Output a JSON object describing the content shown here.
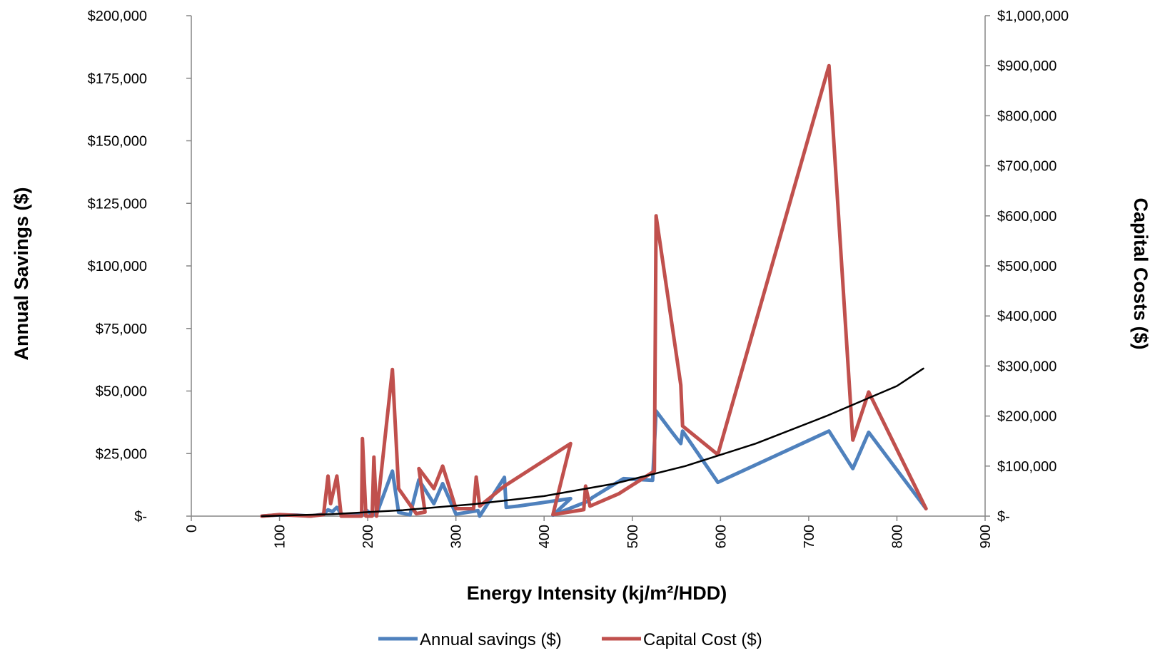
{
  "chart_data": {
    "type": "line",
    "xlabel": "Energy Intensity (kj/m²/HDD)",
    "ylabel_left": "Annual Savings ($)",
    "ylabel_right": "Capital Costs ($)",
    "xlim": [
      0,
      900
    ],
    "x_ticks": [
      {
        "value": 0,
        "label": "0"
      },
      {
        "value": 100,
        "label": "100"
      },
      {
        "value": 200,
        "label": "200"
      },
      {
        "value": 300,
        "label": "300"
      },
      {
        "value": 400,
        "label": "400"
      },
      {
        "value": 500,
        "label": "500"
      },
      {
        "value": 600,
        "label": "600"
      },
      {
        "value": 700,
        "label": "700"
      },
      {
        "value": 800,
        "label": "800"
      },
      {
        "value": 900,
        "label": "900"
      }
    ],
    "y_left_lim": [
      0,
      200000
    ],
    "y_left_ticks": [
      {
        "value": 0,
        "label": "$-"
      },
      {
        "value": 25000,
        "label": "$25,000"
      },
      {
        "value": 50000,
        "label": "$50,000"
      },
      {
        "value": 75000,
        "label": "$75,000"
      },
      {
        "value": 100000,
        "label": "$100,000"
      },
      {
        "value": 125000,
        "label": "$125,000"
      },
      {
        "value": 150000,
        "label": "$150,000"
      },
      {
        "value": 175000,
        "label": "$175,000"
      },
      {
        "value": 200000,
        "label": "$200,000"
      }
    ],
    "y_right_lim": [
      0,
      1000000
    ],
    "y_right_ticks": [
      {
        "value": 0,
        "label": "$-"
      },
      {
        "value": 100000,
        "label": "$100,000"
      },
      {
        "value": 200000,
        "label": "$200,000"
      },
      {
        "value": 300000,
        "label": "$300,000"
      },
      {
        "value": 400000,
        "label": "$400,000"
      },
      {
        "value": 500000,
        "label": "$500,000"
      },
      {
        "value": 600000,
        "label": "$600,000"
      },
      {
        "value": 700000,
        "label": "$700,000"
      },
      {
        "value": 800000,
        "label": "$800,000"
      },
      {
        "value": 900000,
        "label": "$900,000"
      },
      {
        "value": 1000000,
        "label": "$1,000,000"
      }
    ],
    "grid": false,
    "legend_position": "bottom",
    "series": [
      {
        "name": "Annual savings ($)",
        "color": "#4f81bd",
        "axis": "left",
        "points": [
          [
            80,
            0
          ],
          [
            100,
            500
          ],
          [
            120,
            400
          ],
          [
            135,
            0
          ],
          [
            150,
            800
          ],
          [
            155,
            2500
          ],
          [
            160,
            1800
          ],
          [
            165,
            3500
          ],
          [
            170,
            800
          ],
          [
            185,
            500
          ],
          [
            195,
            800
          ],
          [
            198,
            2500
          ],
          [
            205,
            600
          ],
          [
            210,
            800
          ],
          [
            228,
            18000
          ],
          [
            235,
            1500
          ],
          [
            248,
            500
          ],
          [
            258,
            14500
          ],
          [
            275,
            5000
          ],
          [
            285,
            13000
          ],
          [
            300,
            800
          ],
          [
            325,
            2200
          ],
          [
            327,
            0
          ],
          [
            355,
            15500
          ],
          [
            357,
            3500
          ],
          [
            370,
            4000
          ],
          [
            430,
            7000
          ],
          [
            410,
            400
          ],
          [
            450,
            6000
          ],
          [
            455,
            7500
          ],
          [
            490,
            15000
          ],
          [
            523,
            14300
          ],
          [
            527,
            42000
          ],
          [
            545,
            33500
          ],
          [
            555,
            29000
          ],
          [
            557,
            34000
          ],
          [
            597,
            13500
          ],
          [
            723,
            34000
          ],
          [
            750,
            19000
          ],
          [
            768,
            33500
          ],
          [
            833,
            3000
          ]
        ]
      },
      {
        "name": "Capital Cost ($)",
        "color": "#c0504d",
        "axis": "right",
        "points": [
          [
            80,
            0
          ],
          [
            100,
            3000
          ],
          [
            135,
            0
          ],
          [
            150,
            3000
          ],
          [
            155,
            80000
          ],
          [
            158,
            25000
          ],
          [
            165,
            80000
          ],
          [
            170,
            0
          ],
          [
            185,
            0
          ],
          [
            193,
            0
          ],
          [
            194,
            155000
          ],
          [
            198,
            0
          ],
          [
            205,
            0
          ],
          [
            207,
            118000
          ],
          [
            210,
            0
          ],
          [
            228,
            293000
          ],
          [
            235,
            55000
          ],
          [
            255,
            5000
          ],
          [
            265,
            8000
          ],
          [
            258,
            95000
          ],
          [
            275,
            55000
          ],
          [
            285,
            100000
          ],
          [
            300,
            15000
          ],
          [
            320,
            15000
          ],
          [
            323,
            78000
          ],
          [
            327,
            20000
          ],
          [
            355,
            60000
          ],
          [
            430,
            145000
          ],
          [
            410,
            3000
          ],
          [
            445,
            13000
          ],
          [
            447,
            60000
          ],
          [
            452,
            20000
          ],
          [
            485,
            45000
          ],
          [
            525,
            90000
          ],
          [
            527,
            600000
          ],
          [
            555,
            262000
          ],
          [
            557,
            180000
          ],
          [
            597,
            123000
          ],
          [
            723,
            900000
          ],
          [
            750,
            152000
          ],
          [
            768,
            248000
          ],
          [
            833,
            15000
          ]
        ]
      },
      {
        "color": "#000000",
        "axis": "right",
        "points": [
          [
            80,
            0
          ],
          [
            160,
            4000
          ],
          [
            240,
            12000
          ],
          [
            320,
            24000
          ],
          [
            400,
            40000
          ],
          [
            480,
            65000
          ],
          [
            560,
            100000
          ],
          [
            640,
            145000
          ],
          [
            720,
            200000
          ],
          [
            800,
            260000
          ],
          [
            830,
            295000
          ]
        ]
      }
    ]
  }
}
